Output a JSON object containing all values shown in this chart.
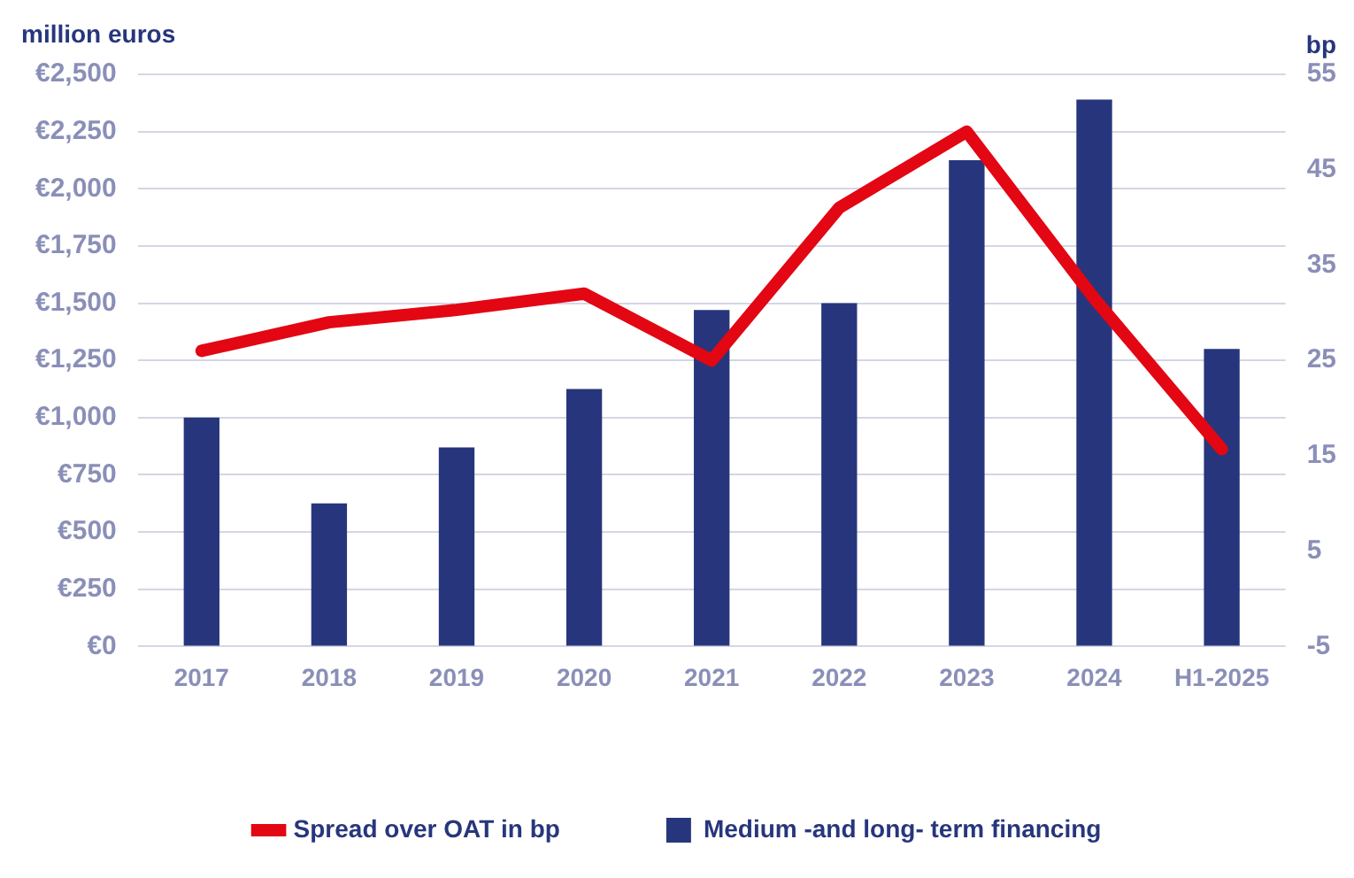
{
  "chart_data": {
    "type": "bar",
    "ylabel": "million euros",
    "y2label": "bp",
    "categories": [
      "2017",
      "2018",
      "2019",
      "2020",
      "2021",
      "2022",
      "2023",
      "2024",
      "H1-2025"
    ],
    "series": [
      {
        "name": "Spread over OAT in bp",
        "type": "line",
        "axis": "y2",
        "color": "#e30613",
        "values": [
          26,
          29,
          30.3,
          32,
          25,
          41,
          49,
          31.5,
          15.7
        ]
      },
      {
        "name": "Medium -and long- term financing",
        "color": "#27367c",
        "values": [
          1000,
          625,
          870,
          1125,
          1470,
          1500,
          2125,
          2390,
          1300
        ]
      }
    ],
    "ylim": [
      0,
      2500
    ],
    "yticks": [
      {
        "value": 0,
        "label": "€0"
      },
      {
        "value": 250,
        "label": "€250"
      },
      {
        "value": 500,
        "label": "€500"
      },
      {
        "value": 750,
        "label": "€750"
      },
      {
        "value": 1000,
        "label": "€1,000"
      },
      {
        "value": 1250,
        "label": "€1,250"
      },
      {
        "value": 1500,
        "label": "€1,500"
      },
      {
        "value": 1750,
        "label": "€1,750"
      },
      {
        "value": 2000,
        "label": "€2,000"
      },
      {
        "value": 2250,
        "label": "€2,250"
      },
      {
        "value": 2500,
        "label": "€2,500"
      }
    ],
    "y2lim": [
      -5,
      55
    ],
    "y2ticks": [
      -5,
      5,
      15,
      25,
      35,
      45,
      55
    ],
    "grid": "y",
    "legend": "bottom",
    "marker": "none"
  }
}
